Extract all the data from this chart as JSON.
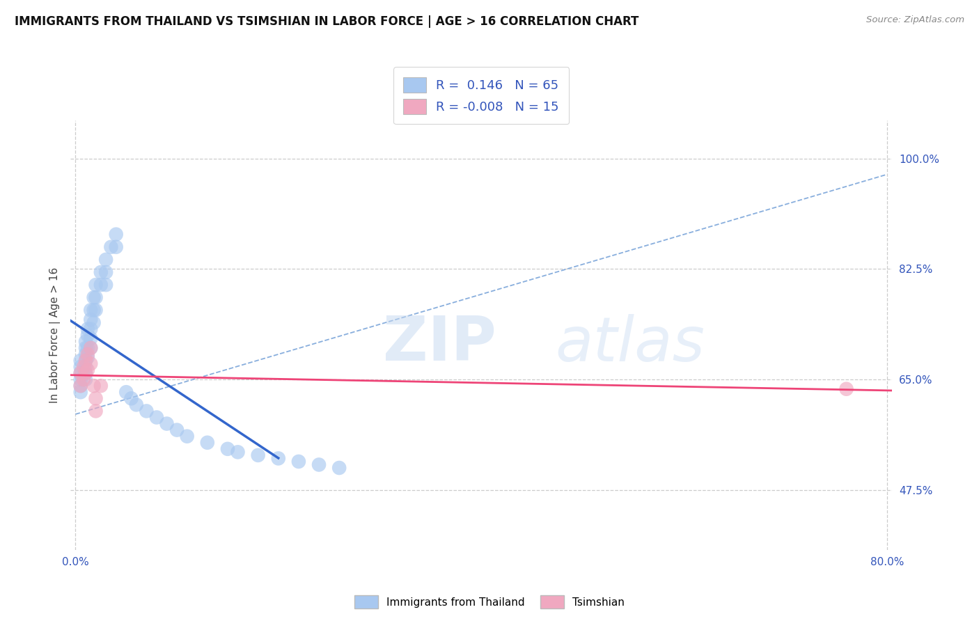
{
  "title": "IMMIGRANTS FROM THAILAND VS TSIMSHIAN IN LABOR FORCE | AGE > 16 CORRELATION CHART",
  "source": "Source: ZipAtlas.com",
  "ylabel": "In Labor Force | Age > 16",
  "xlim": [
    -0.005,
    0.805
  ],
  "ylim": [
    0.38,
    1.06
  ],
  "x_ticks": [
    0.0,
    0.8
  ],
  "x_tick_labels": [
    "0.0%",
    "80.0%"
  ],
  "y_ticks": [
    0.475,
    0.65,
    0.825,
    1.0
  ],
  "y_tick_labels": [
    "47.5%",
    "65.0%",
    "82.5%",
    "100.0%"
  ],
  "watermark": "ZIPatlas",
  "legend_r_thai": "0.146",
  "legend_n_thai": "65",
  "legend_r_tsim": "-0.008",
  "legend_n_tsim": "15",
  "thailand_color": "#a8c8f0",
  "tsimshian_color": "#f0a8c0",
  "thailand_line_color": "#3366cc",
  "tsimshian_line_color": "#ee4477",
  "dashed_line_color": "#88aedd",
  "grid_color": "#cccccc",
  "thailand_points_x": [
    0.005,
    0.005,
    0.005,
    0.005,
    0.005,
    0.005,
    0.01,
    0.01,
    0.01,
    0.01,
    0.01,
    0.01,
    0.01,
    0.012,
    0.012,
    0.012,
    0.012,
    0.015,
    0.015,
    0.015,
    0.015,
    0.015,
    0.018,
    0.018,
    0.018,
    0.02,
    0.02,
    0.02,
    0.025,
    0.025,
    0.03,
    0.03,
    0.03,
    0.035,
    0.04,
    0.04,
    0.05,
    0.055,
    0.06,
    0.07,
    0.08,
    0.09,
    0.1,
    0.11,
    0.13,
    0.15,
    0.16,
    0.18,
    0.2,
    0.22,
    0.24,
    0.26
  ],
  "thailand_points_y": [
    0.68,
    0.67,
    0.66,
    0.65,
    0.64,
    0.63,
    0.71,
    0.7,
    0.69,
    0.68,
    0.67,
    0.66,
    0.65,
    0.73,
    0.72,
    0.7,
    0.685,
    0.76,
    0.745,
    0.73,
    0.715,
    0.7,
    0.78,
    0.76,
    0.74,
    0.8,
    0.78,
    0.76,
    0.82,
    0.8,
    0.84,
    0.82,
    0.8,
    0.86,
    0.88,
    0.86,
    0.63,
    0.62,
    0.61,
    0.6,
    0.59,
    0.58,
    0.57,
    0.56,
    0.55,
    0.54,
    0.535,
    0.53,
    0.525,
    0.52,
    0.515,
    0.51
  ],
  "tsimshian_points_x": [
    0.005,
    0.005,
    0.008,
    0.008,
    0.01,
    0.01,
    0.012,
    0.012,
    0.015,
    0.015,
    0.018,
    0.02,
    0.02,
    0.025,
    0.76
  ],
  "tsimshian_points_y": [
    0.66,
    0.64,
    0.67,
    0.65,
    0.68,
    0.66,
    0.69,
    0.665,
    0.7,
    0.675,
    0.64,
    0.62,
    0.6,
    0.64,
    0.635
  ],
  "figsize": [
    14.06,
    8.92
  ],
  "dpi": 100
}
